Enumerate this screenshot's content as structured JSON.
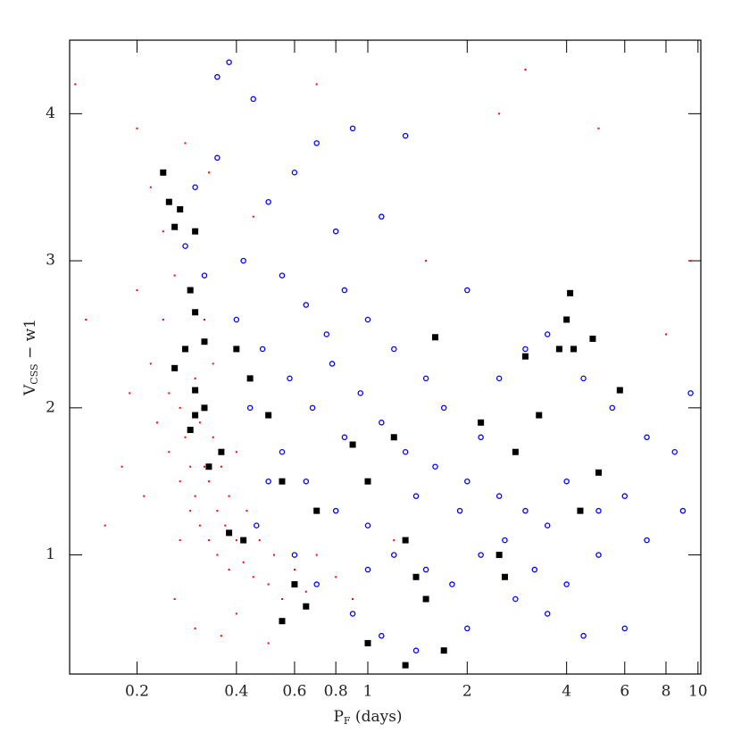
{
  "chart_data": {
    "type": "scatter",
    "xlabel": [
      "P",
      "F",
      " (days)"
    ],
    "ylabel": [
      "V",
      "CSS",
      " − w1"
    ],
    "xscale": "log",
    "xlim": [
      0.125,
      10.2
    ],
    "ylim": [
      0.19,
      4.5
    ],
    "xticks": [
      0.2,
      0.4,
      0.6,
      0.8,
      1,
      2,
      4,
      6,
      8,
      10
    ],
    "yticks": [
      1,
      2,
      3,
      4
    ],
    "grid": false,
    "series": [
      {
        "color": "#ff0000",
        "marker": "dot",
        "x": [
          0.22,
          0.23,
          0.24,
          0.25,
          0.25,
          0.26,
          0.27,
          0.27,
          0.28,
          0.28,
          0.29,
          0.29,
          0.3,
          0.3,
          0.31,
          0.31,
          0.32,
          0.32,
          0.33,
          0.33,
          0.34,
          0.35,
          0.35,
          0.36,
          0.37,
          0.38,
          0.38,
          0.4,
          0.4,
          0.42,
          0.43,
          0.45,
          0.47,
          0.5,
          0.52,
          0.55,
          0.6,
          0.65,
          0.7,
          0.8,
          0.9,
          0.24,
          0.22,
          0.2,
          0.19,
          0.18,
          0.2,
          0.16,
          0.14,
          0.13,
          0.26,
          0.3,
          0.36,
          0.4,
          0.5,
          0.33,
          0.28,
          1.2,
          1.5,
          3,
          5,
          8,
          9.5,
          2.5,
          0.7,
          0.45,
          0.27,
          0.21,
          0.34,
          0.29
        ],
        "values": [
          2.3,
          1.9,
          2.6,
          1.7,
          2.1,
          2.9,
          1.5,
          2.0,
          1.8,
          2.4,
          1.3,
          1.6,
          2.2,
          1.4,
          1.9,
          1.2,
          1.6,
          2.6,
          1.1,
          1.5,
          1.8,
          1.3,
          1.0,
          1.6,
          1.2,
          0.9,
          1.4,
          1.1,
          1.7,
          0.95,
          1.3,
          0.85,
          1.1,
          0.8,
          1.0,
          0.7,
          0.9,
          0.75,
          1.0,
          0.85,
          0.7,
          3.2,
          3.5,
          2.8,
          2.1,
          1.6,
          3.9,
          1.2,
          2.6,
          4.2,
          0.7,
          0.5,
          0.45,
          0.6,
          0.4,
          3.6,
          3.8,
          1.1,
          3.0,
          4.3,
          3.9,
          2.5,
          3.0,
          4.0,
          4.2,
          3.3,
          1.1,
          1.4,
          2.3,
          2.8
        ]
      },
      {
        "color": "#0000ff",
        "marker": "circle",
        "x": [
          0.38,
          0.35,
          0.45,
          0.6,
          0.7,
          0.9,
          1.3,
          0.5,
          0.8,
          1.1,
          0.42,
          0.55,
          0.65,
          0.75,
          0.85,
          1.0,
          1.2,
          1.5,
          0.48,
          0.58,
          0.68,
          0.78,
          0.95,
          1.1,
          1.3,
          1.6,
          2.0,
          2.5,
          3.0,
          3.5,
          4.0,
          5.0,
          6.0,
          7.0,
          9.0,
          0.55,
          0.65,
          0.8,
          1.0,
          1.2,
          1.5,
          1.8,
          2.2,
          2.8,
          3.5,
          4.5,
          6.0,
          0.9,
          1.1,
          1.4,
          2.0,
          2.5,
          3.0,
          3.5,
          4.5,
          5.5,
          7.0,
          8.5,
          9.5,
          2.0,
          2.2,
          1.7,
          1.9,
          1.4,
          0.6,
          0.7,
          1.0,
          0.35,
          0.3,
          0.32,
          0.28,
          0.4,
          0.44,
          0.5,
          0.46,
          2.6,
          3.2,
          4.0,
          5.0,
          0.85
        ],
        "values": [
          4.35,
          4.25,
          4.1,
          3.6,
          3.8,
          3.9,
          3.85,
          3.4,
          3.2,
          3.3,
          3.0,
          2.9,
          2.7,
          2.5,
          2.8,
          2.6,
          2.4,
          2.2,
          2.4,
          2.2,
          2.0,
          2.3,
          2.1,
          1.9,
          1.7,
          1.6,
          1.5,
          1.4,
          1.3,
          1.2,
          1.5,
          1.3,
          1.4,
          1.1,
          1.3,
          1.7,
          1.5,
          1.3,
          1.2,
          1.0,
          0.9,
          0.8,
          1.0,
          0.7,
          0.6,
          0.45,
          0.5,
          0.6,
          0.45,
          0.35,
          0.5,
          2.2,
          2.4,
          2.5,
          2.2,
          2.0,
          1.8,
          1.7,
          2.1,
          2.8,
          1.8,
          2.0,
          1.3,
          1.4,
          1.0,
          0.8,
          0.9,
          3.7,
          3.5,
          2.9,
          3.1,
          2.6,
          2.0,
          1.5,
          1.2,
          1.1,
          0.9,
          0.8,
          1.0,
          1.8
        ]
      },
      {
        "color": "#000000",
        "marker": "square",
        "x": [
          0.24,
          0.25,
          0.27,
          0.26,
          0.3,
          0.29,
          0.3,
          0.32,
          0.28,
          0.26,
          0.3,
          0.32,
          0.29,
          0.3,
          0.33,
          0.36,
          0.38,
          0.42,
          0.4,
          0.44,
          0.5,
          0.55,
          0.6,
          0.55,
          0.65,
          0.7,
          0.9,
          1.0,
          1.2,
          1.3,
          1.4,
          1.5,
          1.6,
          1.3,
          1.7,
          2.2,
          2.5,
          2.8,
          3.0,
          3.3,
          4.1,
          4.0,
          4.2,
          3.8,
          4.8,
          5.8,
          5.0,
          4.4,
          2.6,
          1.0
        ],
        "values": [
          3.6,
          3.4,
          3.35,
          3.23,
          3.2,
          2.8,
          2.65,
          2.45,
          2.4,
          2.27,
          2.12,
          2.0,
          1.85,
          1.95,
          1.6,
          1.7,
          1.15,
          1.1,
          2.4,
          2.2,
          1.95,
          1.5,
          0.8,
          0.55,
          0.65,
          1.3,
          1.75,
          1.5,
          1.8,
          1.1,
          0.85,
          0.7,
          2.48,
          0.25,
          0.35,
          1.9,
          1.0,
          1.7,
          2.35,
          1.95,
          2.78,
          2.6,
          2.4,
          2.4,
          2.47,
          2.12,
          1.56,
          1.3,
          0.85,
          0.4
        ]
      }
    ]
  }
}
